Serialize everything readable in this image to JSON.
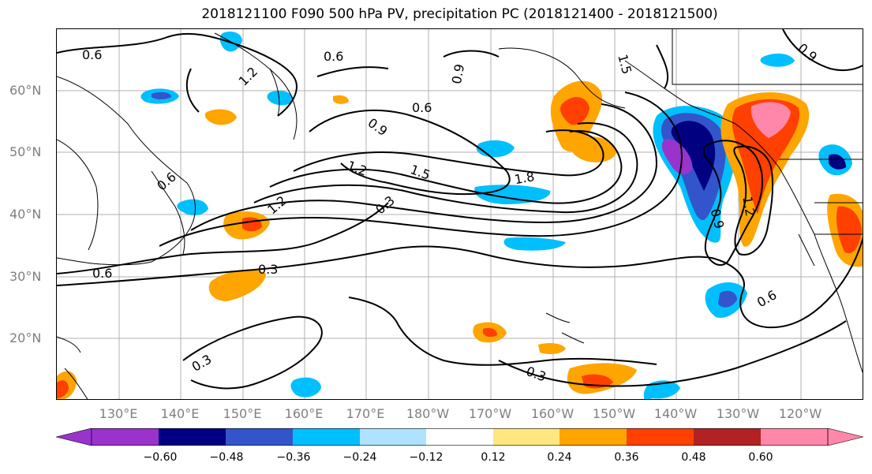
{
  "title": "2018121100 F090 500 hPa PV, precipitation PC (2018121400 - 2018121500)",
  "map": {
    "lat_labels": [
      "60°N",
      "50°N",
      "40°N",
      "30°N",
      "20°N"
    ],
    "lon_labels": [
      "130°E",
      "140°E",
      "150°E",
      "160°E",
      "170°E",
      "180°W",
      "170°W",
      "160°W",
      "150°W",
      "140°W",
      "130°W",
      "120°W"
    ],
    "contour_labels": [
      "0.6",
      "0.6",
      "1.2",
      "0.9",
      "0.6",
      "1.5",
      "0.9",
      "1.2",
      "1.5",
      "1.8",
      "0.3",
      "1.2",
      "0.6",
      "0.6",
      "0.3",
      "0.9",
      "1.2",
      "0.6",
      "0.3",
      "0.3",
      "0.9"
    ],
    "colors": {
      "purple": "#9933cc",
      "navy": "#000080",
      "blue": "#3355cc",
      "cyan": "#00bfff",
      "lightblue": "#aee3ff",
      "yellow": "#ffe680",
      "orange": "#ffa500",
      "redorange": "#ff4000",
      "darkred": "#b22222",
      "pink": "#ff88aa"
    }
  },
  "colorbar": {
    "ticks": [
      "−0.60",
      "−0.48",
      "−0.36",
      "−0.24",
      "−0.12",
      "0.12",
      "0.24",
      "0.36",
      "0.48",
      "0.60"
    ],
    "colors": [
      "#9933cc",
      "#000080",
      "#3355cc",
      "#00bfff",
      "#aee3ff",
      "#ffffff",
      "#ffe680",
      "#ffa500",
      "#ff4000",
      "#b22222",
      "#ff88aa"
    ]
  }
}
